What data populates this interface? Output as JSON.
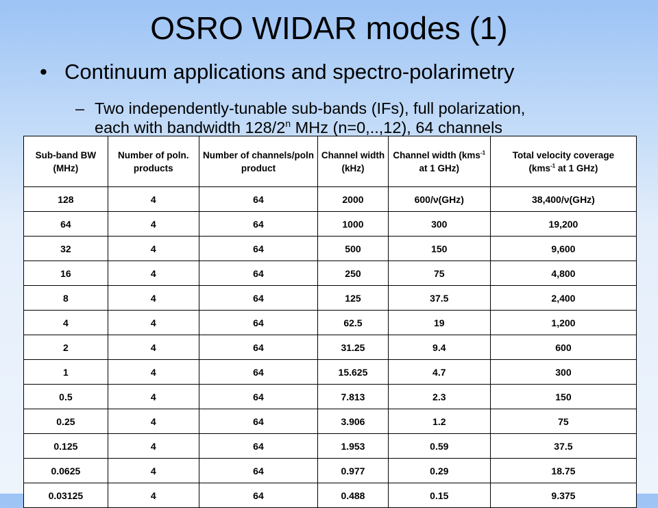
{
  "title": "OSRO WIDAR modes (1)",
  "bullet": {
    "marker": "•",
    "text": "Continuum applications and spectro-polarimetry"
  },
  "subbullet": {
    "marker": "–",
    "line1": "Two independently-tunable sub-bands (IFs), full polarization,",
    "line2_pre": "each with bandwidth 128/2",
    "line2_sup": "n",
    "line2_post": " MHz (n=0,..,12), 64 channels"
  },
  "table": {
    "headers": {
      "h1": "Sub-band BW (MHz)",
      "h2": "Number of poln. products",
      "h3": "Number of channels/poln product",
      "h4": "Channel width (kHz)",
      "h5_a": "Channel width (kms",
      "h5_sup": "-1",
      "h5_b": " at 1 GHz)",
      "h6_a": "Total velocity coverage",
      "h6_b": "(kms",
      "h6_sup": "-1",
      "h6_c": " at 1 GHz)"
    },
    "rows": [
      [
        "128",
        "4",
        "64",
        "2000",
        "600/ν(GHz)",
        "38,400/ν(GHz)"
      ],
      [
        "64",
        "4",
        "64",
        "1000",
        "300",
        "19,200"
      ],
      [
        "32",
        "4",
        "64",
        "500",
        "150",
        "9,600"
      ],
      [
        "16",
        "4",
        "64",
        "250",
        "75",
        "4,800"
      ],
      [
        "8",
        "4",
        "64",
        "125",
        "37.5",
        "2,400"
      ],
      [
        "4",
        "4",
        "64",
        "62.5",
        "19",
        "1,200"
      ],
      [
        "2",
        "4",
        "64",
        "31.25",
        "9.4",
        "600"
      ],
      [
        "1",
        "4",
        "64",
        "15.625",
        "4.7",
        "300"
      ],
      [
        "0.5",
        "4",
        "64",
        "7.813",
        "2.3",
        "150"
      ],
      [
        "0.25",
        "4",
        "64",
        "3.906",
        "1.2",
        "75"
      ],
      [
        "0.125",
        "4",
        "64",
        "1.953",
        "0.59",
        "37.5"
      ],
      [
        "0.0625",
        "4",
        "64",
        "0.977",
        "0.29",
        "18.75"
      ],
      [
        "0.03125",
        "4",
        "64",
        "0.488",
        "0.15",
        "9.375"
      ]
    ]
  }
}
